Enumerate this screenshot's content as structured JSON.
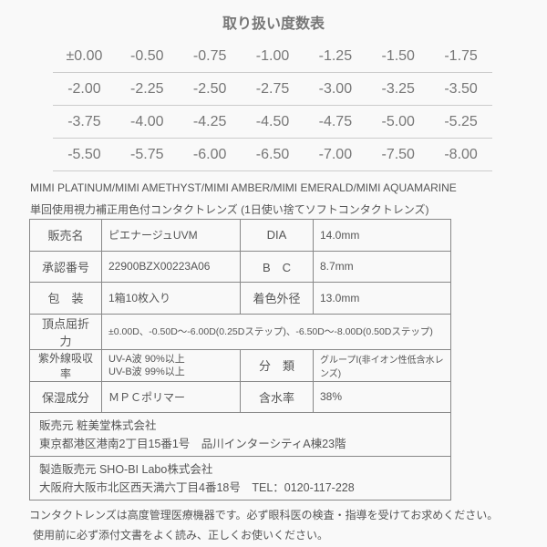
{
  "title": "取り扱い度数表",
  "powers": [
    [
      "±0.00",
      "-0.50",
      "-0.75",
      "-1.00",
      "-1.25",
      "-1.50",
      "-1.75"
    ],
    [
      "-2.00",
      "-2.25",
      "-2.50",
      "-2.75",
      "-3.00",
      "-3.25",
      "-3.50"
    ],
    [
      "-3.75",
      "-4.00",
      "-4.25",
      "-4.50",
      "-4.75",
      "-5.00",
      "-5.25"
    ],
    [
      "-5.50",
      "-5.75",
      "-6.00",
      "-6.50",
      "-7.00",
      "-7.50",
      "-8.00"
    ]
  ],
  "header": {
    "line1": "MIMI PLATINUM/MIMI AMETHYST/MIMI AMBER/MIMI EMERALD/MIMI AQUAMARINE",
    "line2": "単回使用視力補正用色付コンタクトレンズ (1日使い捨てソフトコンタクトレンズ)"
  },
  "spec": {
    "r1": [
      "販売名",
      "ピエナージュUVM",
      "DIA",
      "14.0mm"
    ],
    "r2": [
      "承認番号",
      "22900BZX00223A06",
      "B　C",
      "8.7mm"
    ],
    "r3": [
      "包　装",
      "1箱10枚入り",
      "着色外径",
      "13.0mm"
    ],
    "r4": [
      "頂点屈折力",
      "±0.00D、-0.50D～-6.00D(0.25Dステップ)、-6.50D～-8.00D(0.50Dステップ)"
    ],
    "r5": [
      "紫外線吸収率",
      "UV-A波 90%以上",
      "UV-B波 99%以上",
      "分　類",
      "グループⅠ(非イオン性低含水レンズ)"
    ],
    "r6": [
      "保湿成分",
      "ＭＰＣポリマー",
      "含水率",
      "38%"
    ],
    "seller": [
      "販売元 粧美堂株式会社",
      "東京都港区港南2丁目15番1号　品川インターシティA棟23階"
    ],
    "maker": [
      "製造販売元 SHO-BI Labo株式会社",
      "大阪府大阪市北区西天満六丁目4番18号　TEL：0120-117-228"
    ]
  },
  "footer": [
    "コンタクトレンズは高度管理医療機器です。必ず眼科医の検査・指導を受けてお求めください。",
    "使用前に必ず添付文書をよく読み、正しくお使いください。"
  ]
}
